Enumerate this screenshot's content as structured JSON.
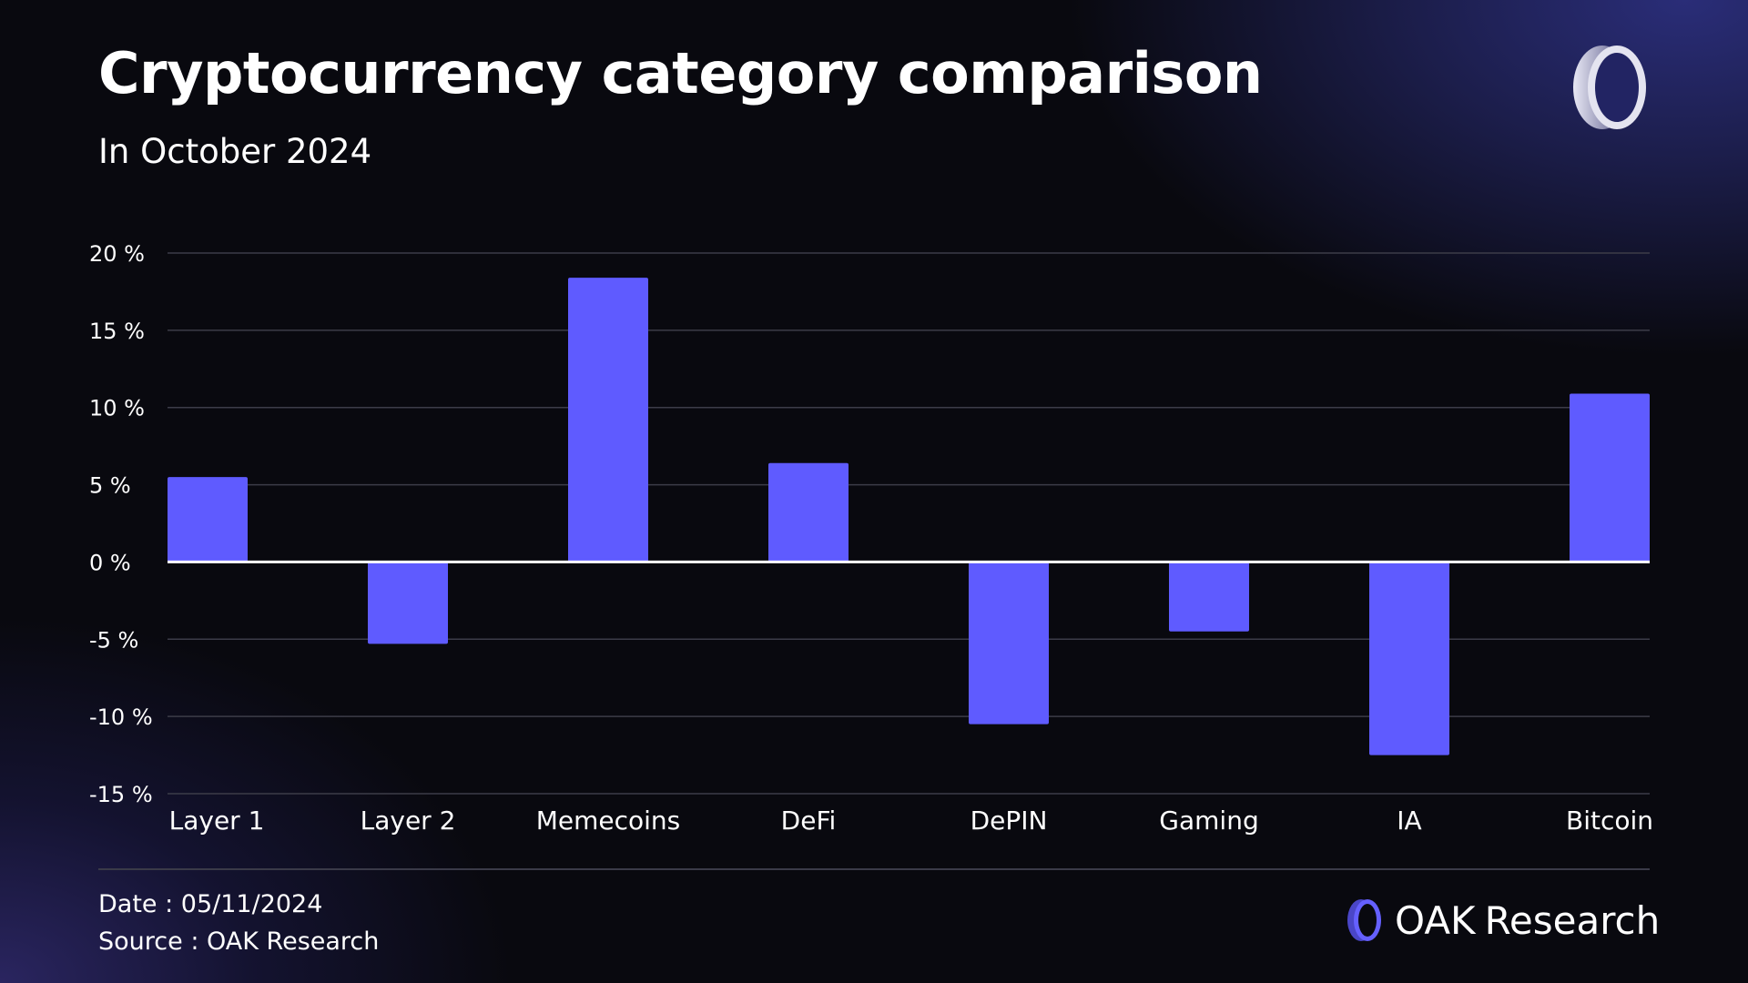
{
  "header": {
    "title": "Cryptocurrency category comparison",
    "subtitle": "In October 2024"
  },
  "footer": {
    "date": "Date : 05/11/2024",
    "source": "Source : OAK Research",
    "brand_strong": "OAK",
    "brand_rest": "Research",
    "logo_icon": "oak-ring-logo"
  },
  "colors": {
    "bar": "#5f5bff",
    "grid": "#3c3c48",
    "zero_line": "#ffffff"
  },
  "chart_data": {
    "type": "bar",
    "title": "Cryptocurrency category comparison",
    "subtitle": "In October 2024",
    "categories": [
      "Layer 1",
      "Layer 2",
      "Memecoins",
      "DeFi",
      "DePIN",
      "Gaming",
      "IA",
      "Bitcoin"
    ],
    "values": [
      5.5,
      -5.3,
      18.4,
      6.4,
      -10.5,
      -4.5,
      -12.5,
      10.9
    ],
    "unit": "%",
    "ylim": [
      -15,
      20
    ],
    "yticks": [
      20,
      15,
      10,
      5,
      0,
      -5,
      -10,
      -15
    ],
    "ytick_labels": [
      "20 %",
      "15 %",
      "10 %",
      "5 %",
      "0 %",
      "-5 %",
      "-10 %",
      "-15 %"
    ],
    "grid": true,
    "legend": "none"
  }
}
